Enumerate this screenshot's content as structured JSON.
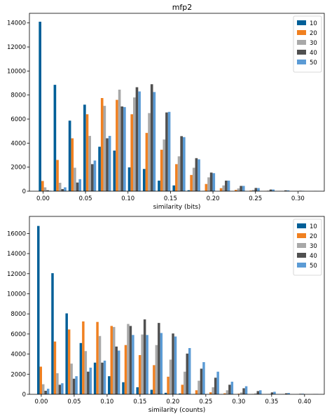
{
  "figure": {
    "title": "mfp2"
  },
  "chart_data": [
    {
      "type": "bar",
      "xlabel": "similarity (bits)",
      "ylabel": "",
      "xlim": [
        -0.016,
        0.331
      ],
      "ylim": [
        0,
        14800
      ],
      "xticks": [
        0.0,
        0.05,
        0.1,
        0.15,
        0.2,
        0.25,
        0.3
      ],
      "xtick_labels": [
        "0.00",
        "0.05",
        "0.10",
        "0.15",
        "0.20",
        "0.25",
        "0.30"
      ],
      "yticks": [
        0,
        2000,
        4000,
        6000,
        8000,
        10000,
        12000,
        14000
      ],
      "ytick_labels": [
        "0",
        "2000",
        "4000",
        "6000",
        "8000",
        "10000",
        "12000",
        "14000"
      ],
      "legend": {
        "position": "upper-right",
        "entries": [
          "10",
          "20",
          "30",
          "40",
          "50"
        ]
      },
      "bin_centers": [
        0.0025,
        0.02,
        0.0375,
        0.055,
        0.0725,
        0.09,
        0.1075,
        0.125,
        0.1425,
        0.16,
        0.1775,
        0.195,
        0.2125,
        0.23,
        0.2475,
        0.265,
        0.2825,
        0.3,
        0.3175
      ],
      "bar_width": 0.003,
      "series": [
        {
          "name": "10",
          "color": "#005f98",
          "values": [
            14100,
            8850,
            5870,
            7200,
            3700,
            3380,
            1980,
            1850,
            880,
            480,
            80,
            25,
            10,
            5,
            0,
            0,
            0,
            0,
            0
          ]
        },
        {
          "name": "20",
          "color": "#f08020",
          "values": [
            850,
            2600,
            4400,
            6400,
            7750,
            7600,
            6400,
            4850,
            3450,
            2250,
            1350,
            600,
            250,
            110,
            50,
            20,
            10,
            5,
            0
          ]
        },
        {
          "name": "30",
          "color": "#a8a8a8",
          "values": [
            320,
            700,
            1950,
            4600,
            7100,
            8450,
            7800,
            6500,
            4300,
            2900,
            1950,
            1150,
            480,
            230,
            110,
            50,
            20,
            10,
            5
          ]
        },
        {
          "name": "40",
          "color": "#505050",
          "values": [
            80,
            180,
            720,
            2250,
            4400,
            7050,
            8650,
            8900,
            6550,
            4580,
            2750,
            1550,
            880,
            440,
            270,
            140,
            70,
            35,
            10
          ]
        },
        {
          "name": "50",
          "color": "#5b9bd5",
          "values": [
            40,
            320,
            1000,
            2550,
            4600,
            7000,
            8300,
            8250,
            6600,
            4500,
            2650,
            1500,
            880,
            440,
            260,
            140,
            70,
            30,
            10
          ]
        }
      ]
    },
    {
      "type": "bar",
      "xlabel": "similarity (counts)",
      "ylabel": "",
      "xlim": [
        -0.018,
        0.43
      ],
      "ylim": [
        0,
        17700
      ],
      "xticks": [
        0.0,
        0.05,
        0.1,
        0.15,
        0.2,
        0.25,
        0.3,
        0.35,
        0.4
      ],
      "xtick_labels": [
        "0.00",
        "0.05",
        "0.10",
        "0.15",
        "0.20",
        "0.25",
        "0.30",
        "0.35",
        "0.40"
      ],
      "yticks": [
        0,
        2000,
        4000,
        6000,
        8000,
        10000,
        12000,
        14000,
        16000
      ],
      "ytick_labels": [
        "0",
        "2000",
        "4000",
        "6000",
        "8000",
        "10000",
        "12000",
        "14000",
        "16000"
      ],
      "legend": {
        "position": "upper-right",
        "entries": [
          "10",
          "20",
          "30",
          "40",
          "50"
        ]
      },
      "bin_centers": [
        0.003,
        0.0245,
        0.046,
        0.0675,
        0.089,
        0.1105,
        0.132,
        0.1535,
        0.175,
        0.1965,
        0.218,
        0.2395,
        0.261,
        0.2825,
        0.304,
        0.3255,
        0.347,
        0.3685,
        0.39,
        0.4115
      ],
      "bar_width": 0.0037,
      "series": [
        {
          "name": "10",
          "color": "#005f98",
          "values": [
            16750,
            12050,
            8050,
            5100,
            3150,
            1800,
            1200,
            700,
            450,
            150,
            80,
            30,
            10,
            5,
            0,
            0,
            0,
            0,
            0,
            0
          ]
        },
        {
          "name": "20",
          "color": "#f08020",
          "values": [
            2750,
            5250,
            6450,
            7250,
            7200,
            6800,
            4900,
            3900,
            2900,
            1750,
            950,
            400,
            200,
            100,
            60,
            30,
            10,
            5,
            0,
            0
          ]
        },
        {
          "name": "30",
          "color": "#a8a8a8",
          "values": [
            1000,
            2100,
            3050,
            4300,
            5800,
            6700,
            7000,
            5950,
            4900,
            3450,
            2250,
            1350,
            700,
            400,
            180,
            90,
            40,
            20,
            10,
            5
          ]
        },
        {
          "name": "40",
          "color": "#505050",
          "values": [
            350,
            950,
            1550,
            2250,
            3150,
            4750,
            6800,
            7450,
            7100,
            6050,
            4050,
            2550,
            1650,
            950,
            600,
            320,
            190,
            100,
            50,
            20
          ]
        },
        {
          "name": "50",
          "color": "#5b9bd5",
          "values": [
            550,
            1100,
            1800,
            2650,
            3350,
            4350,
            5900,
            5900,
            6100,
            5750,
            4600,
            3200,
            2250,
            1250,
            800,
            400,
            250,
            130,
            60,
            30
          ]
        }
      ]
    }
  ]
}
